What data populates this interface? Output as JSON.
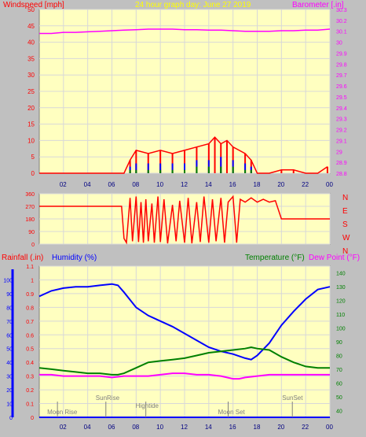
{
  "colors": {
    "bg": "#c0c0c0",
    "plot_bg": "#ffffc0",
    "grid": "#d8d8d8",
    "wind": "#ff0000",
    "wind_blue": "#0000ff",
    "wind_green": "#008000",
    "pressure": "#ff00ff",
    "winddir": "#ff0000",
    "temp": "#008000",
    "dew": "#ff00ff",
    "humidity": "#0000ff",
    "rain": "#0000ff",
    "title": "#ffff00"
  },
  "top": {
    "title": "24 hour graph day:  June 27 2019",
    "left_label": "Windspeed [mph]",
    "right_label": "Barometer [.in]"
  },
  "panel3": {
    "rain_label": "Rainfall (.in)",
    "humidity_label": "Humidity (%)",
    "temp_label": "Temperature (°F)",
    "dew_label": "Dew Point (°F)",
    "events": [
      {
        "label": "Moon Rise",
        "time": 1.5
      },
      {
        "label": "SunRise",
        "time": 5.5
      },
      {
        "label": "Hightide",
        "time": 8.8
      },
      {
        "label": "Moon Set",
        "time": 15.6
      },
      {
        "label": "SunSet",
        "time": 20.9
      }
    ]
  },
  "chart_data": [
    {
      "type": "area",
      "title": "24 hour graph day:  June 27 2019",
      "xlabel": "",
      "ylabel": "Windspeed [mph]",
      "y2label": "Barometer [.in]",
      "x_ticks": [
        "02",
        "04",
        "06",
        "08",
        "10",
        "12",
        "14",
        "16",
        "18",
        "20",
        "22",
        "00"
      ],
      "xlim": [
        0,
        24
      ],
      "ylim": [
        0,
        50
      ],
      "y_ticks": [
        0,
        5,
        10,
        15,
        20,
        25,
        30,
        35,
        40,
        45,
        50
      ],
      "y2lim": [
        29.8,
        30.3
      ],
      "y2_ticks": [
        "29.8",
        "29.9",
        "30",
        "30.1",
        "30.2",
        "30.3"
      ],
      "y2_tick_labels": [
        "28.8",
        "28.9",
        "29",
        "29.1",
        "29.2",
        "29.3",
        "29.4",
        "29.5",
        "29.6",
        "29.7",
        "29.8",
        "29.9",
        "30",
        "30.1",
        "30.2",
        "30.3"
      ],
      "y2_tick_values": [
        28.8,
        28.9,
        29.0,
        29.1,
        29.2,
        29.3,
        29.4,
        29.5,
        29.6,
        29.7,
        29.8,
        29.9,
        30.0,
        30.1,
        30.2,
        30.3
      ],
      "series": [
        {
          "role": "gust",
          "color": "#ff0000",
          "x": [
            0,
            1,
            2,
            3,
            4,
            5,
            6,
            7,
            7.5,
            8,
            9,
            10,
            11,
            12,
            13,
            14,
            14.5,
            15,
            15.5,
            16,
            17,
            17.5,
            18,
            19,
            20,
            21,
            22,
            23,
            23.8
          ],
          "values": [
            0,
            0,
            0,
            0,
            0,
            0,
            0,
            0,
            4,
            7,
            6,
            7,
            6,
            7,
            8,
            9,
            11,
            9,
            10,
            8,
            6,
            4,
            0,
            0,
            1,
            1,
            0,
            0,
            2
          ]
        },
        {
          "role": "average",
          "color": "#0000ff",
          "x": [
            7.5,
            8,
            9,
            10,
            11,
            12,
            13,
            14,
            15,
            16,
            17,
            17.5
          ],
          "values": [
            2,
            3,
            3,
            3,
            3,
            3,
            4,
            4,
            5,
            4,
            3,
            2
          ]
        },
        {
          "role": "calm",
          "color": "#008000",
          "x": [
            7.5,
            8,
            9,
            10,
            11,
            12,
            13,
            14,
            15,
            16,
            17,
            17.5
          ],
          "values": [
            1,
            1,
            1,
            1,
            1,
            1,
            2,
            2,
            2,
            2,
            1,
            1
          ]
        },
        {
          "role": "pressure",
          "color": "#ff00ff",
          "axis": "y2",
          "x": [
            0,
            1,
            2,
            3,
            4,
            5,
            6,
            7,
            8,
            9,
            10,
            11,
            12,
            13,
            14,
            15,
            16,
            17,
            18,
            19,
            20,
            21,
            22,
            23,
            24
          ],
          "values": [
            30.08,
            30.08,
            30.09,
            30.09,
            30.095,
            30.1,
            30.105,
            30.11,
            30.115,
            30.12,
            30.12,
            30.12,
            30.115,
            30.115,
            30.11,
            30.11,
            30.105,
            30.1,
            30.1,
            30.1,
            30.105,
            30.105,
            30.11,
            30.11,
            30.12
          ]
        }
      ]
    },
    {
      "type": "line",
      "title": "",
      "ylabel": "Wind Direction",
      "ylim": [
        0,
        360
      ],
      "y_ticks": [
        0,
        90,
        180,
        270,
        360
      ],
      "y2_tick_labels": [
        "N",
        "W",
        "S",
        "E",
        "N"
      ],
      "x_ticks": [
        "02",
        "04",
        "06",
        "08",
        "10",
        "12",
        "14",
        "16",
        "18",
        "20",
        "22",
        "00"
      ],
      "xlim": [
        0,
        24
      ],
      "series": [
        {
          "role": "direction",
          "color": "#ff0000",
          "x": [
            0,
            1,
            2,
            3,
            4,
            5,
            6,
            6.8,
            7.0,
            7.2,
            7.5,
            7.7,
            8.0,
            8.2,
            8.4,
            8.6,
            8.8,
            9.0,
            9.3,
            9.5,
            9.8,
            10.0,
            10.3,
            10.6,
            11.0,
            11.3,
            11.6,
            12.0,
            12.3,
            12.6,
            13.0,
            13.3,
            13.6,
            14.0,
            14.3,
            14.6,
            15.0,
            15.3,
            15.6,
            16.0,
            16.3,
            16.6,
            17.0,
            17.5,
            18.0,
            18.5,
            19.0,
            19.5,
            20.0,
            21,
            22,
            23,
            24
          ],
          "values": [
            270,
            270,
            270,
            270,
            270,
            270,
            270,
            270,
            40,
            10,
            330,
            20,
            340,
            15,
            300,
            10,
            320,
            20,
            290,
            10,
            340,
            15,
            320,
            5,
            280,
            20,
            310,
            10,
            330,
            5,
            300,
            15,
            340,
            10,
            320,
            20,
            330,
            10,
            300,
            340,
            10,
            320,
            300,
            330,
            300,
            320,
            300,
            310,
            180,
            180,
            180,
            180,
            180
          ]
        }
      ]
    },
    {
      "type": "line",
      "title": "",
      "ylabel": "Humidity (%)",
      "x_ticks": [
        "02",
        "04",
        "06",
        "08",
        "10",
        "12",
        "14",
        "16",
        "18",
        "20",
        "22",
        "00"
      ],
      "xlim": [
        0,
        24
      ],
      "y_rain_ticks": [
        "0",
        "0.1",
        "0.2",
        "0.3",
        "0.4",
        "0.5",
        "0.6",
        "0.7",
        "0.8",
        "0.9",
        "1",
        "1.1"
      ],
      "rain_ylim": [
        0,
        1.1
      ],
      "y_humidity_ticks": [
        0,
        10,
        20,
        30,
        40,
        50,
        60,
        70,
        80,
        90,
        100
      ],
      "humidity_ylim": [
        0,
        110
      ],
      "y_temp_ticks": [
        40,
        50,
        60,
        70,
        80,
        90,
        100,
        110,
        120,
        130,
        140
      ],
      "temp_ylim": [
        35,
        145
      ],
      "series": [
        {
          "name": "Humidity (%)",
          "color": "#0000ff",
          "axis": "humidity",
          "x": [
            0,
            0.5,
            1,
            2,
            3,
            4,
            5,
            6,
            6.5,
            7,
            8,
            9,
            10,
            11,
            12,
            13,
            14,
            15,
            16,
            17,
            17.5,
            18,
            19,
            20,
            21,
            22,
            23,
            24
          ],
          "values": [
            88,
            90,
            92,
            94,
            95,
            95,
            96,
            97,
            96,
            91,
            80,
            74,
            70,
            66,
            61,
            56,
            51,
            48,
            46,
            43,
            42,
            45,
            54,
            67,
            77,
            86,
            93,
            95
          ]
        },
        {
          "name": "Temperature (°F)",
          "color": "#008000",
          "axis": "temp",
          "x": [
            0,
            1,
            2,
            3,
            4,
            5,
            6,
            6.5,
            7,
            8,
            9,
            10,
            11,
            12,
            13,
            14,
            15,
            16,
            17,
            17.5,
            18,
            19,
            20,
            21,
            22,
            23,
            24
          ],
          "values": [
            71,
            70,
            69,
            68,
            67,
            67,
            66,
            66,
            67,
            71,
            75,
            76,
            77,
            78,
            80,
            82,
            83,
            84,
            85,
            86,
            85,
            84,
            79,
            75,
            72,
            71,
            71
          ]
        },
        {
          "name": "Dew Point (°F)",
          "color": "#ff00ff",
          "axis": "temp",
          "x": [
            0,
            1,
            2,
            3,
            4,
            5,
            6,
            7,
            8,
            9,
            10,
            11,
            12,
            13,
            14,
            15,
            16,
            16.5,
            17,
            18,
            19,
            20,
            21,
            22,
            23,
            24
          ],
          "values": [
            66,
            66,
            65,
            65,
            65,
            65,
            64,
            65,
            65,
            65,
            66,
            67,
            67,
            66,
            66,
            65,
            63,
            63,
            64,
            65,
            66,
            66,
            66,
            66,
            66,
            66
          ]
        },
        {
          "name": "Rainfall (.in)",
          "color": "#0000ff",
          "axis": "rain",
          "x": [
            0,
            24
          ],
          "values": [
            0,
            0
          ]
        }
      ]
    }
  ]
}
